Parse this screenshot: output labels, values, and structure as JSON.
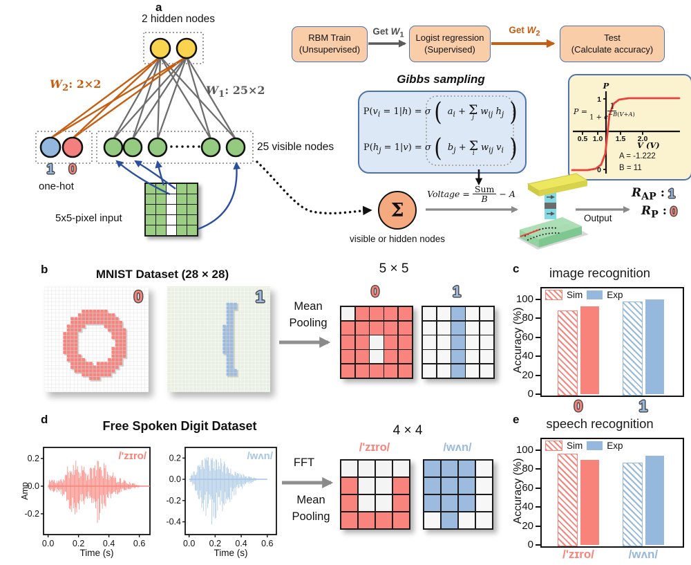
{
  "panel_a": {
    "letter": "a",
    "hidden_label": "2 hidden nodes",
    "w2_html": "<i>W</i><sub>2</sub>: 2×2",
    "w1_html": "<i>W</i><sub>1</sub>: 25×2",
    "visible_label": "25 visible nodes",
    "onehot_one": "1",
    "onehot_zero": "0",
    "onehot_label": "one-hot",
    "input_label": "5x5-pixel input",
    "input": {
      "on_color": "#9bcd82",
      "off_color": "#ffffff",
      "matrix": [
        [
          1,
          1,
          0,
          1,
          1
        ],
        [
          1,
          1,
          0,
          1,
          1
        ],
        [
          1,
          1,
          0,
          1,
          1
        ],
        [
          1,
          1,
          0,
          1,
          1
        ],
        [
          1,
          1,
          0,
          1,
          1
        ]
      ]
    },
    "flow": {
      "box1_l1": "RBM Train",
      "box1_l2": "(Unsupervised)",
      "get_w1_html": "Get <i>W</i><sub>1</sub>",
      "box2_l1": "Logist regression",
      "box2_l2": "(Supervised)",
      "get_w2_html": "Get <i>W</i><sub>2</sub>",
      "box3_l1": "Test",
      "box3_l2": "(Calculate accuracy)"
    },
    "gibbs": {
      "title": "Gibbs sampling",
      "sum": "Σ",
      "eq1_lhs": "P(<i>v<sub>i</sub></i> = 1|<i>h</i>) = <i>σ</i>",
      "eq1_pre": "<i>a<sub>i</sub></i> +",
      "eq1_sub": "<i>j</i>",
      "eq1_post": "<i>w<sub>ij</sub></i> <i>h<sub>j</sub></i>",
      "eq2_lhs": "P(<i>h<sub>j</sub></i> = 1|<i>v</i>) = <i>σ</i>",
      "eq2_pre": "<i>b<sub>j</sub></i> +",
      "eq2_sub": "<i>i</i>",
      "eq2_post": "<i>w<sub>ij</sub></i> <i>v<sub>i</sub></i>"
    },
    "voltage": {
      "lhs": "<i>Voltage</i> =",
      "num": "Sum",
      "den": "<i>B</i>",
      "tail": "− <i>A</i>"
    },
    "sum_node": {
      "symbol": "Σ",
      "caption": "visible or hidden nodes"
    },
    "output_label": "Output",
    "results": [
      {
        "name_html": "<i>R</i><sub>AP</sub> :",
        "value": "1",
        "color": "#94b7dd"
      },
      {
        "name_html": "<i>R</i><sub>P</sub> :",
        "value": "0",
        "color": "#f8837b"
      }
    ],
    "sigmoid": {
      "formula_lhs": "<i>P</i> =",
      "formula_num": "1",
      "formula_den": "1 + <i>e</i><sup>−<i>B</i>(<i>V</i>+<i>A</i>)</sup>",
      "ylabel": "P",
      "ytick_top": "1",
      "ytick_bottom": "0",
      "xticks": [
        "0.5",
        "1.0",
        "1.5",
        "2.0"
      ],
      "xlabel": "V (V)",
      "a_label": "A = -1.222",
      "b_label": "B = 11"
    }
  },
  "panel_b": {
    "letter": "b",
    "title": "MNIST Dataset (28 × 28)",
    "mnist": [
      {
        "label": "0",
        "shape": "ring",
        "color": "#f9847e",
        "bg": "#ffffff",
        "grid": "#e2e2e2",
        "label_color": "#f8837b"
      },
      {
        "label": "1",
        "shape": "one",
        "color": "#9cbbdf",
        "bg": "#e9efe3",
        "grid": "#ffffff",
        "label_color": "#9cbbdf"
      }
    ],
    "pool_l1": "Mean",
    "pool_l2": "Pooling",
    "size_label": "5 × 5",
    "pooled": [
      {
        "label": "0",
        "on_color": "#f9847e",
        "off_color": "#f4f4f4",
        "matrix": [
          [
            0,
            1,
            1,
            1,
            1
          ],
          [
            1,
            1,
            1,
            1,
            1
          ],
          [
            1,
            1,
            0,
            1,
            1
          ],
          [
            1,
            1,
            0,
            1,
            1
          ],
          [
            1,
            1,
            1,
            1,
            1
          ]
        ]
      },
      {
        "label": "1",
        "on_color": "#9cbbdf",
        "off_color": "#f7f7f7",
        "matrix": [
          [
            0,
            0,
            1,
            0,
            0
          ],
          [
            0,
            0,
            1,
            0,
            0
          ],
          [
            0,
            0,
            1,
            0,
            0
          ],
          [
            0,
            0,
            1,
            0,
            0
          ],
          [
            0,
            0,
            1,
            0,
            0
          ]
        ]
      }
    ]
  },
  "panel_c": {
    "letter": "c"
  },
  "panel_d": {
    "letter": "d",
    "title": "Free Spoken Digit Dataset",
    "fft_label": "FFT",
    "pool_l1": "Mean",
    "pool_l2": "Pooling",
    "size_label": "4 × 4",
    "pooled": [
      {
        "label": "/'zɪro/",
        "on_color": "#f9847e",
        "off_color": "#f4f4f4",
        "matrix": [
          [
            0,
            0,
            0,
            0
          ],
          [
            1,
            0,
            0,
            1
          ],
          [
            1,
            0,
            0,
            1
          ],
          [
            1,
            1,
            1,
            1
          ]
        ]
      },
      {
        "label": "/wʌn/",
        "on_color": "#9cbbdf",
        "off_color": "#f7f7f7",
        "matrix": [
          [
            1,
            1,
            1,
            0
          ],
          [
            1,
            1,
            1,
            0
          ],
          [
            1,
            1,
            1,
            0
          ],
          [
            0,
            1,
            0,
            0
          ]
        ]
      }
    ]
  },
  "panel_e": {
    "letter": "e"
  },
  "chart_data": [
    {
      "type": "bar",
      "panel": "c",
      "title": "image recognition",
      "ylabel": "Accuracy (%)",
      "ylim": [
        0,
        100
      ],
      "yticks": [
        0,
        20,
        40,
        60,
        80,
        100
      ],
      "legend_position": "top-left",
      "categories": [
        {
          "label": "0",
          "color": "#f8837b",
          "label_style": "outlined"
        },
        {
          "label": "1",
          "color": "#96b8dc",
          "label_style": "outlined"
        }
      ],
      "series": [
        {
          "name": "Sim",
          "fill": "hatched",
          "values": [
            88,
            98
          ]
        },
        {
          "name": "Exp",
          "fill": "solid",
          "values": [
            93,
            100
          ]
        }
      ]
    },
    {
      "type": "bar",
      "panel": "e",
      "title": "speech recognition",
      "ylabel": "Accuracy (%)",
      "ylim": [
        0,
        100
      ],
      "yticks": [
        0,
        20,
        40,
        60,
        80,
        100
      ],
      "legend_position": "top-left",
      "categories": [
        {
          "label": "/'zɪro/",
          "color": "#f8837b",
          "label_style": "plain"
        },
        {
          "label": "/wʌn/",
          "color": "#96b8dc",
          "label_style": "plain"
        }
      ],
      "series": [
        {
          "name": "Sim",
          "fill": "hatched",
          "values": [
            96,
            87
          ]
        },
        {
          "name": "Exp",
          "fill": "solid",
          "values": [
            90,
            94
          ]
        }
      ]
    },
    {
      "type": "waveform",
      "panel": "d",
      "label": "/'zɪro/",
      "color": "#f8837b",
      "xlabel": "Time (s)",
      "ylabel": "Amp",
      "xticks": [
        "0.0",
        "0.2",
        "0.4",
        "0.6"
      ],
      "yticks": [
        "0.2",
        "0.0",
        "-0.2"
      ],
      "xlim": [
        -0.03,
        0.67
      ],
      "ylim": [
        -0.35,
        0.28
      ],
      "seed": 11,
      "envelope": {
        "t": [
          0,
          0.01,
          0.03,
          0.05,
          0.08,
          0.11,
          0.14,
          0.17,
          0.2,
          0.23,
          0.26,
          0.29,
          0.31,
          0.33,
          0.35,
          0.38,
          0.41,
          0.45,
          0.5,
          0.55,
          0.6
        ],
        "upper": [
          0,
          0.07,
          0.06,
          0.045,
          0.05,
          0.09,
          0.18,
          0.21,
          0.2,
          0.17,
          0.1,
          0.16,
          0.19,
          0.22,
          0.18,
          0.16,
          0.12,
          0.08,
          0.05,
          0.025,
          0.01
        ],
        "lower": [
          0,
          0.06,
          0.05,
          0.04,
          0.06,
          0.1,
          0.2,
          0.22,
          0.19,
          0.15,
          0.09,
          0.17,
          0.22,
          0.3,
          0.2,
          0.15,
          0.11,
          0.07,
          0.04,
          0.02,
          0.01
        ]
      }
    },
    {
      "type": "waveform",
      "panel": "d",
      "label": "/wʌn/",
      "color": "#a9c6e4",
      "xlabel": "Time (s)",
      "ylabel": "",
      "xticks": [
        "0.0",
        "0.2",
        "0.4",
        "0.6"
      ],
      "yticks": [
        "0.2",
        "0.0",
        "-0.2",
        "-0.4"
      ],
      "xlim": [
        -0.03,
        0.67
      ],
      "ylim": [
        -0.52,
        0.3
      ],
      "seed": 23,
      "envelope": {
        "t": [
          0,
          0.02,
          0.05,
          0.08,
          0.11,
          0.14,
          0.17,
          0.2,
          0.23,
          0.26,
          0.3,
          0.34,
          0.38,
          0.42,
          0.46,
          0.5,
          0.52
        ],
        "upper": [
          0,
          0.05,
          0.1,
          0.16,
          0.22,
          0.25,
          0.26,
          0.24,
          0.21,
          0.18,
          0.14,
          0.11,
          0.08,
          0.05,
          0.03,
          0.02,
          0.01
        ],
        "lower": [
          0,
          0.06,
          0.13,
          0.22,
          0.32,
          0.4,
          0.45,
          0.42,
          0.36,
          0.3,
          0.24,
          0.18,
          0.13,
          0.09,
          0.05,
          0.02,
          0.01
        ]
      }
    }
  ]
}
